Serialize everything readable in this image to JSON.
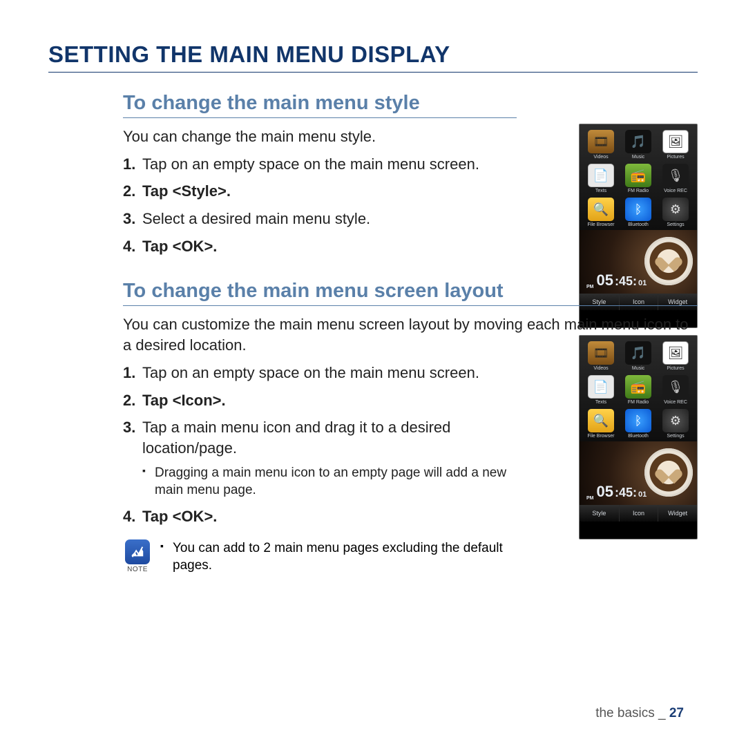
{
  "page_title": "SETTING THE MAIN MENU DISPLAY",
  "section1": {
    "title": "To change the main menu style",
    "intro": "You can change the main menu style.",
    "steps": [
      {
        "text": "Tap on an empty space on the main menu screen.",
        "bold": false
      },
      {
        "text": "Tap <Style>.",
        "bold": true
      },
      {
        "text": "Select a desired main menu style.",
        "bold": false
      },
      {
        "text": "Tap <OK>.",
        "bold": true
      }
    ],
    "highlight_tab_index": 0
  },
  "section2": {
    "title": "To change the main menu screen layout",
    "intro": "You can customize the main menu screen layout by moving each main menu icon to a desired location.",
    "steps": [
      {
        "text": "Tap on an empty space on the main menu screen.",
        "bold": false
      },
      {
        "text": "Tap <Icon>.",
        "bold": true
      },
      {
        "text": "Tap a main menu icon and drag it to a desired location/page.",
        "bold": false,
        "sub": [
          "Dragging a main menu icon to an empty page will add a new main menu page."
        ]
      },
      {
        "text": "Tap <OK>.",
        "bold": true
      }
    ],
    "note_label": "NOTE",
    "note_text": "You can add to 2 main menu pages excluding the default pages.",
    "highlight_tab_index": 1
  },
  "device": {
    "apps": [
      {
        "label": "Videos",
        "icon": "🎞",
        "cls": "ic-videos"
      },
      {
        "label": "Music",
        "icon": "🎵",
        "cls": "ic-music",
        "color": "#5fb6ff"
      },
      {
        "label": "Pictures",
        "icon": "🖼",
        "cls": "ic-pics"
      },
      {
        "label": "Texts",
        "icon": "📄",
        "cls": "ic-texts"
      },
      {
        "label": "FM Radio",
        "icon": "📻",
        "cls": "ic-radio"
      },
      {
        "label": "Voice REC",
        "icon": "🎙",
        "cls": "ic-voice",
        "color": "#bbb"
      },
      {
        "label": "File Browser",
        "icon": "🔍",
        "cls": "ic-files"
      },
      {
        "label": "Bluetooth",
        "icon": "ᛒ",
        "cls": "ic-bt",
        "color": "#fff"
      },
      {
        "label": "Settings",
        "icon": "⚙",
        "cls": "ic-set",
        "color": "#ddd"
      }
    ],
    "clock": {
      "ampm": "PM",
      "h": "05",
      "m": "45",
      "s": "01"
    },
    "tabs": [
      "Style",
      "Icon",
      "Widget"
    ]
  },
  "footer": {
    "text": "the basics _ ",
    "page": "27"
  }
}
